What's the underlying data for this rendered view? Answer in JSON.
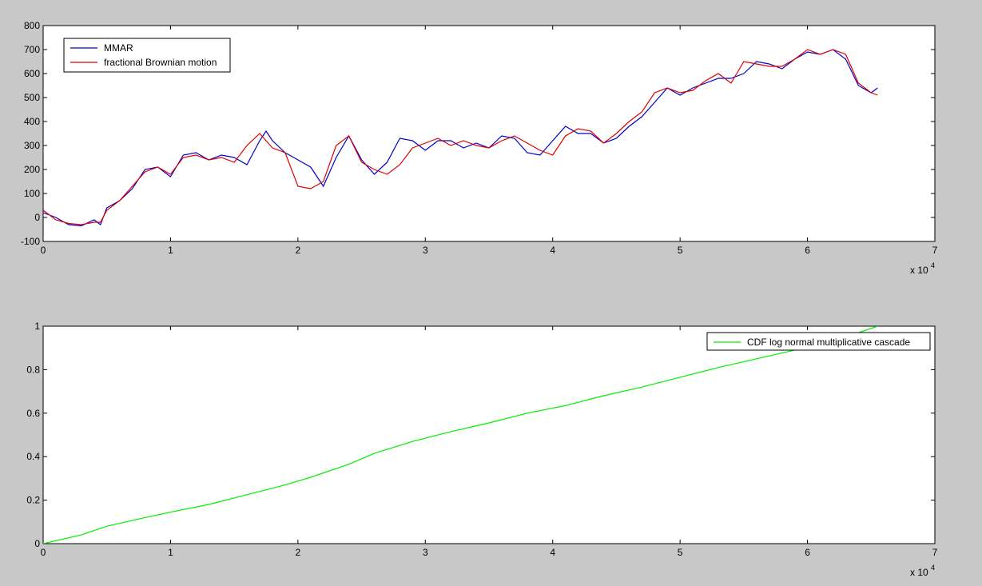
{
  "chart_data": [
    {
      "type": "line",
      "title": "",
      "xlabel": "",
      "ylabel": "",
      "x_exponent_label": "x 10",
      "x_exponent_power": "4",
      "xlim": [
        0,
        7
      ],
      "ylim": [
        -100,
        800
      ],
      "xticks": [
        0,
        1,
        2,
        3,
        4,
        5,
        6,
        7
      ],
      "yticks": [
        -100,
        0,
        100,
        200,
        300,
        400,
        500,
        600,
        700,
        800
      ],
      "xtick_labels": [
        "0",
        "1",
        "2",
        "3",
        "4",
        "5",
        "6",
        "7"
      ],
      "ytick_labels": [
        "-100",
        "0",
        "100",
        "200",
        "300",
        "400",
        "500",
        "600",
        "700",
        "800"
      ],
      "grid": false,
      "legend_position": "top-left",
      "series": [
        {
          "name": "MMAR",
          "color": "#0000cc",
          "x": [
            0,
            0.1,
            0.2,
            0.3,
            0.4,
            0.45,
            0.5,
            0.6,
            0.7,
            0.8,
            0.9,
            1.0,
            1.1,
            1.2,
            1.3,
            1.4,
            1.5,
            1.6,
            1.7,
            1.75,
            1.8,
            1.9,
            2.0,
            2.1,
            2.2,
            2.3,
            2.4,
            2.5,
            2.6,
            2.7,
            2.8,
            2.9,
            3.0,
            3.1,
            3.2,
            3.3,
            3.4,
            3.5,
            3.6,
            3.7,
            3.8,
            3.9,
            4.0,
            4.1,
            4.2,
            4.3,
            4.4,
            4.5,
            4.6,
            4.7,
            4.8,
            4.9,
            5.0,
            5.1,
            5.2,
            5.3,
            5.4,
            5.5,
            5.6,
            5.7,
            5.8,
            5.9,
            6.0,
            6.1,
            6.2,
            6.3,
            6.4,
            6.5,
            6.55
          ],
          "values": [
            20,
            0,
            -30,
            -35,
            -10,
            -30,
            40,
            70,
            120,
            200,
            210,
            170,
            260,
            270,
            240,
            260,
            250,
            220,
            320,
            360,
            320,
            270,
            240,
            210,
            130,
            250,
            340,
            240,
            180,
            230,
            330,
            320,
            280,
            320,
            320,
            290,
            310,
            290,
            340,
            330,
            270,
            260,
            320,
            380,
            350,
            350,
            310,
            330,
            380,
            420,
            480,
            540,
            510,
            540,
            560,
            580,
            580,
            600,
            650,
            640,
            620,
            660,
            690,
            680,
            700,
            660,
            550,
            520,
            540
          ]
        },
        {
          "name": "fractional Brownian motion",
          "color": "#dd0000",
          "x": [
            0,
            0.1,
            0.2,
            0.3,
            0.4,
            0.45,
            0.5,
            0.6,
            0.7,
            0.8,
            0.9,
            1.0,
            1.1,
            1.2,
            1.3,
            1.4,
            1.5,
            1.6,
            1.7,
            1.75,
            1.8,
            1.9,
            2.0,
            2.1,
            2.2,
            2.3,
            2.4,
            2.5,
            2.6,
            2.7,
            2.8,
            2.9,
            3.0,
            3.1,
            3.2,
            3.3,
            3.4,
            3.5,
            3.6,
            3.7,
            3.8,
            3.9,
            4.0,
            4.1,
            4.2,
            4.3,
            4.4,
            4.5,
            4.6,
            4.7,
            4.8,
            4.9,
            5.0,
            5.1,
            5.2,
            5.3,
            5.4,
            5.5,
            5.6,
            5.7,
            5.8,
            5.9,
            6.0,
            6.1,
            6.2,
            6.3,
            6.4,
            6.5,
            6.55
          ],
          "values": [
            30,
            -10,
            -25,
            -30,
            -20,
            -20,
            30,
            70,
            130,
            190,
            210,
            180,
            250,
            260,
            240,
            250,
            230,
            300,
            350,
            320,
            290,
            270,
            130,
            120,
            150,
            300,
            340,
            230,
            200,
            180,
            220,
            290,
            310,
            330,
            300,
            320,
            300,
            290,
            320,
            340,
            310,
            280,
            260,
            340,
            370,
            360,
            310,
            350,
            400,
            440,
            520,
            540,
            520,
            530,
            570,
            600,
            560,
            650,
            640,
            630,
            630,
            660,
            700,
            680,
            700,
            680,
            560,
            520,
            510
          ]
        }
      ]
    },
    {
      "type": "line",
      "title": "",
      "xlabel": "",
      "ylabel": "",
      "x_exponent_label": "x 10",
      "x_exponent_power": "4",
      "xlim": [
        0,
        7
      ],
      "ylim": [
        0,
        1
      ],
      "xticks": [
        0,
        1,
        2,
        3,
        4,
        5,
        6,
        7
      ],
      "yticks": [
        0,
        0.2,
        0.4,
        0.6,
        0.8,
        1
      ],
      "xtick_labels": [
        "0",
        "1",
        "2",
        "3",
        "4",
        "5",
        "6",
        "7"
      ],
      "ytick_labels": [
        "0",
        "0.2",
        "0.4",
        "0.6",
        "0.8",
        "1"
      ],
      "grid": false,
      "legend_position": "top-right",
      "series": [
        {
          "name": "CDF log normal multiplicative cascade",
          "color": "#00ee00",
          "x": [
            0,
            0.3,
            0.5,
            0.8,
            1.0,
            1.3,
            1.6,
            1.9,
            2.1,
            2.4,
            2.6,
            2.9,
            3.2,
            3.5,
            3.8,
            4.1,
            4.4,
            4.7,
            5.0,
            5.3,
            5.6,
            5.9,
            6.2,
            6.55
          ],
          "values": [
            0,
            0.04,
            0.08,
            0.12,
            0.145,
            0.18,
            0.225,
            0.27,
            0.305,
            0.365,
            0.415,
            0.47,
            0.515,
            0.555,
            0.6,
            0.635,
            0.68,
            0.72,
            0.765,
            0.81,
            0.85,
            0.89,
            0.93,
            1.0
          ]
        }
      ]
    }
  ]
}
